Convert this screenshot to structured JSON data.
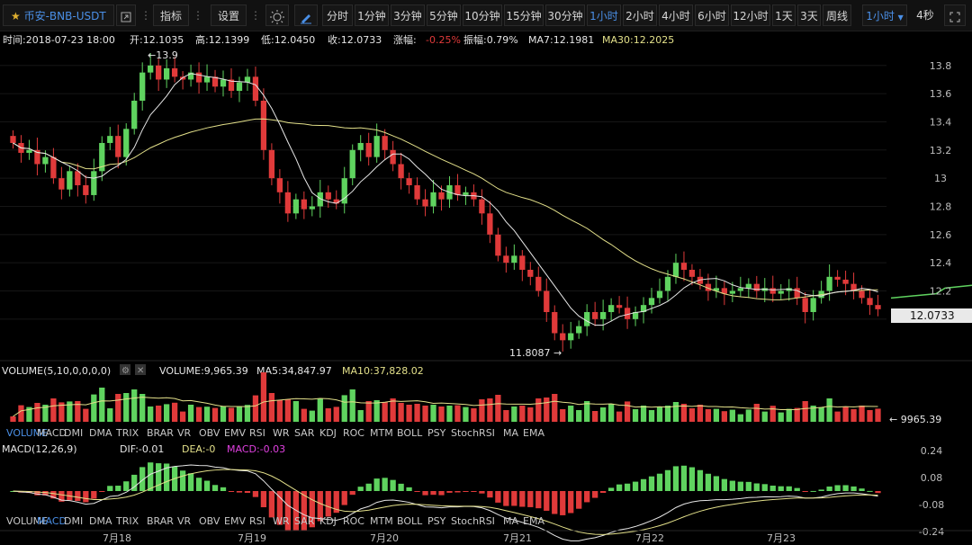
{
  "symbol": "币安-BNB-USDT",
  "toolbar": {
    "indicators": "指标",
    "settings": "设置",
    "intervals": [
      "分时",
      "1分钟",
      "3分钟",
      "5分钟",
      "10分钟",
      "15分钟",
      "30分钟",
      "1小时",
      "2小时",
      "4小时",
      "6小时",
      "12小时",
      "1天",
      "3天",
      "周线"
    ],
    "active_interval": "1小时",
    "interval_select": "1小时",
    "refresh": "4秒"
  },
  "info": {
    "time": "时间:2018-07-23 18:00",
    "open": "开:12.1035",
    "high": "高:12.1399",
    "low": "低:12.0450",
    "close": "收:12.0733",
    "change_label": "涨幅:",
    "change_value": "-0.25%",
    "amplitude": "振幅:0.79%",
    "ma7": "MA7:12.1981",
    "ma30": "MA30:12.2025"
  },
  "price_axis": [
    "13.8",
    "13.6",
    "13.4",
    "13.2",
    "13",
    "12.8",
    "12.6",
    "12.4",
    "12.2",
    "12"
  ],
  "current_price": "12.0733",
  "max_label": "13.9",
  "min_label": "11.8087",
  "volume_info": {
    "title": "VOLUME(5,10,0,0,0,0)",
    "volume": "VOLUME:9,965.39",
    "ma5": "MA5:34,847.97",
    "ma10": "MA10:37,828.02",
    "last": "9965.39"
  },
  "macd_info": {
    "title": "MACD(12,26,9)",
    "dif": "DIF:-0.01",
    "dea": "DEA:-0",
    "macd": "MACD:-0.03"
  },
  "macd_axis": [
    "0.24",
    "0.08",
    "-0.08",
    "-0.24"
  ],
  "indicator_tabs": [
    "VOLUME",
    "MACD",
    "DMI",
    "DMA",
    "TRIX",
    "BRAR",
    "VR",
    "OBV",
    "EMV",
    "RSI",
    "WR",
    "SAR",
    "KDJ",
    "ROC",
    "MTM",
    "BOLL",
    "PSY",
    "StochRSI",
    "MA",
    "EMA"
  ],
  "tabs_row1_active": "VOLUME",
  "tabs_row2_active": "MACD",
  "dates": [
    "7月18",
    "7月19",
    "7月20",
    "7月21",
    "7月22",
    "7月23"
  ],
  "colors": {
    "up": "#5fd35f",
    "down": "#e03a3a",
    "ma7": "#e0e0e0",
    "ma30": "#e3e08a",
    "accent": "#4a8fe6",
    "macd": "#e040e0"
  },
  "chart_data": {
    "type": "candlestick",
    "interval": "1h",
    "date_ticks": [
      "7月18",
      "7月19",
      "7月20",
      "7月21",
      "7月22",
      "7月23"
    ],
    "price_range": [
      11.75,
      13.92
    ],
    "close_path": [
      13.25,
      13.18,
      13.2,
      13.1,
      13.15,
      13.0,
      12.92,
      13.05,
      12.95,
      12.88,
      13.05,
      13.25,
      13.3,
      13.15,
      13.35,
      13.55,
      13.75,
      13.8,
      13.7,
      13.78,
      13.72,
      13.7,
      13.75,
      13.68,
      13.72,
      13.65,
      13.7,
      13.62,
      13.68,
      13.72,
      13.55,
      13.2,
      13.0,
      12.9,
      12.75,
      12.85,
      12.78,
      12.8,
      12.9,
      12.85,
      12.82,
      13.0,
      13.2,
      13.25,
      13.15,
      13.3,
      13.2,
      13.1,
      13.0,
      12.95,
      12.85,
      12.8,
      12.9,
      12.85,
      12.95,
      12.88,
      12.9,
      12.85,
      12.75,
      12.6,
      12.45,
      12.4,
      12.45,
      12.35,
      12.3,
      12.2,
      12.05,
      11.9,
      11.85,
      11.9,
      11.95,
      12.05,
      12.0,
      12.05,
      12.1,
      12.08,
      12.0,
      12.05,
      12.1,
      12.15,
      12.2,
      12.3,
      12.4,
      12.35,
      12.3,
      12.25,
      12.2,
      12.22,
      12.18,
      12.2,
      12.22,
      12.25,
      12.2,
      12.22,
      12.18,
      12.2,
      12.22,
      12.15,
      12.05,
      12.15,
      12.2,
      12.3,
      12.28,
      12.25,
      12.2,
      12.15,
      12.1,
      12.07
    ],
    "last_close": 12.0733,
    "max_high": 13.9,
    "min_low": 11.8087,
    "macd_range": [
      -0.24,
      0.24
    ]
  }
}
